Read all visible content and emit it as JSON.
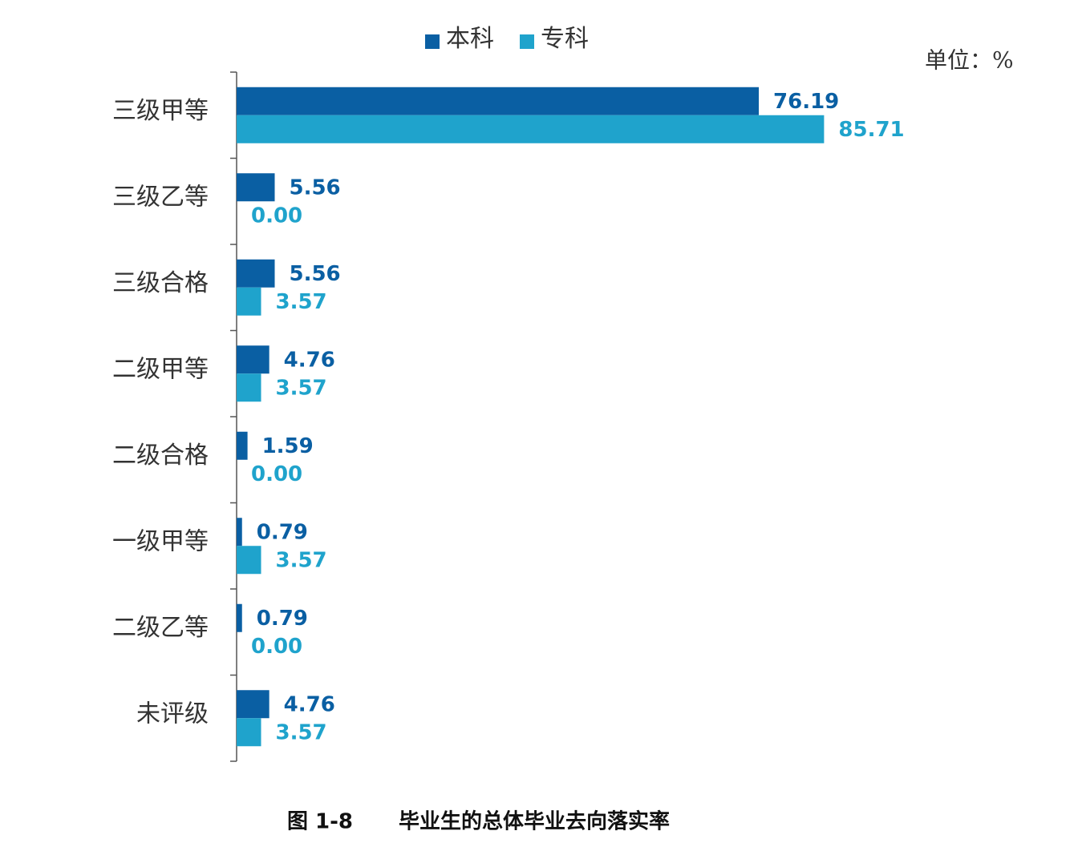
{
  "chart_data": {
    "type": "bar",
    "orientation": "horizontal",
    "title": "毕业生的总体毕业去向落实率",
    "figure_label": "图 1-8",
    "unit_label": "单位：%",
    "categories": [
      "三级甲等",
      "三级乙等",
      "三级合格",
      "二级甲等",
      "二级合格",
      "一级甲等",
      "二级乙等",
      "未评级"
    ],
    "series": [
      {
        "name": "本科",
        "color": "#0a5fa3",
        "values": [
          76.19,
          5.56,
          5.56,
          4.76,
          1.59,
          0.79,
          0.79,
          4.76
        ],
        "value_labels": [
          "76.19",
          "5.56",
          "5.56",
          "4.76",
          "1.59",
          "0.79",
          "0.79",
          "4.76"
        ]
      },
      {
        "name": "专科",
        "color": "#1fa3cc",
        "values": [
          85.71,
          0,
          3.57,
          3.57,
          0,
          3.57,
          0,
          3.57
        ],
        "value_labels": [
          "85.71",
          "0.00",
          "3.57",
          "3.57",
          "0.00",
          "3.57",
          "0.00",
          "3.57"
        ]
      }
    ]
  }
}
